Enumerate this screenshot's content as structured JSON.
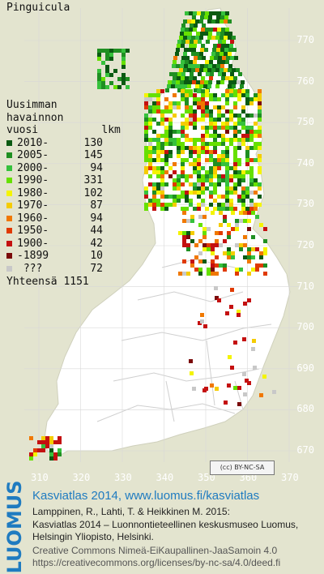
{
  "title": "Pinguicula",
  "legend": {
    "header": [
      "Uusimman",
      "havainnon",
      "vuosi          lkm"
    ],
    "rows": [
      {
        "label": "2010-",
        "count": "130",
        "color": "#0a5a12"
      },
      {
        "label": "2005-",
        "count": "145",
        "color": "#1f8f22"
      },
      {
        "label": "2000-",
        "count": "94",
        "color": "#36c13c"
      },
      {
        "label": "1990-",
        "count": "331",
        "color": "#66e000"
      },
      {
        "label": "1980-",
        "count": "102",
        "color": "#f4f400"
      },
      {
        "label": "1970-",
        "count": "87",
        "color": "#f5cc00"
      },
      {
        "label": "1960-",
        "count": "94",
        "color": "#f07800"
      },
      {
        "label": "1950-",
        "count": "44",
        "color": "#e03a00"
      },
      {
        "label": "1900-",
        "count": "42",
        "color": "#c41010"
      },
      {
        "label": "-1899",
        "count": "10",
        "color": "#7a0a0a"
      },
      {
        "label": " ???",
        "count": "72",
        "color": "#c8c8c8"
      }
    ],
    "total_label": "Yhteensä",
    "total": "1151"
  },
  "axes": {
    "y_ticks": [
      "770",
      "760",
      "750",
      "740",
      "730",
      "720",
      "710",
      "700",
      "690",
      "680",
      "670"
    ],
    "x_ticks": [
      "310",
      "320",
      "330",
      "340",
      "350",
      "360",
      "370"
    ]
  },
  "license_badge": "(cc) BY-NC-SA",
  "footer": {
    "logo": "LUOMUS",
    "title": "Kasviatlas 2014, www.luomus.fi/kasviatlas",
    "citation1": "Lamppinen, R., Lahti, T. & Heikkinen M. 2015:",
    "citation2": "Kasviatlas 2014 – Luonnontieteellinen keskusmuseo Luomus,",
    "citation3": "Helsingin Yliopisto, Helsinki.",
    "license1": "Creative Commons Nimeä-EiKaupallinen-JaaSamoin 4.0",
    "license2": "https://creativecommons.org/licenses/by-nc-sa/4.0/deed.fi"
  }
}
